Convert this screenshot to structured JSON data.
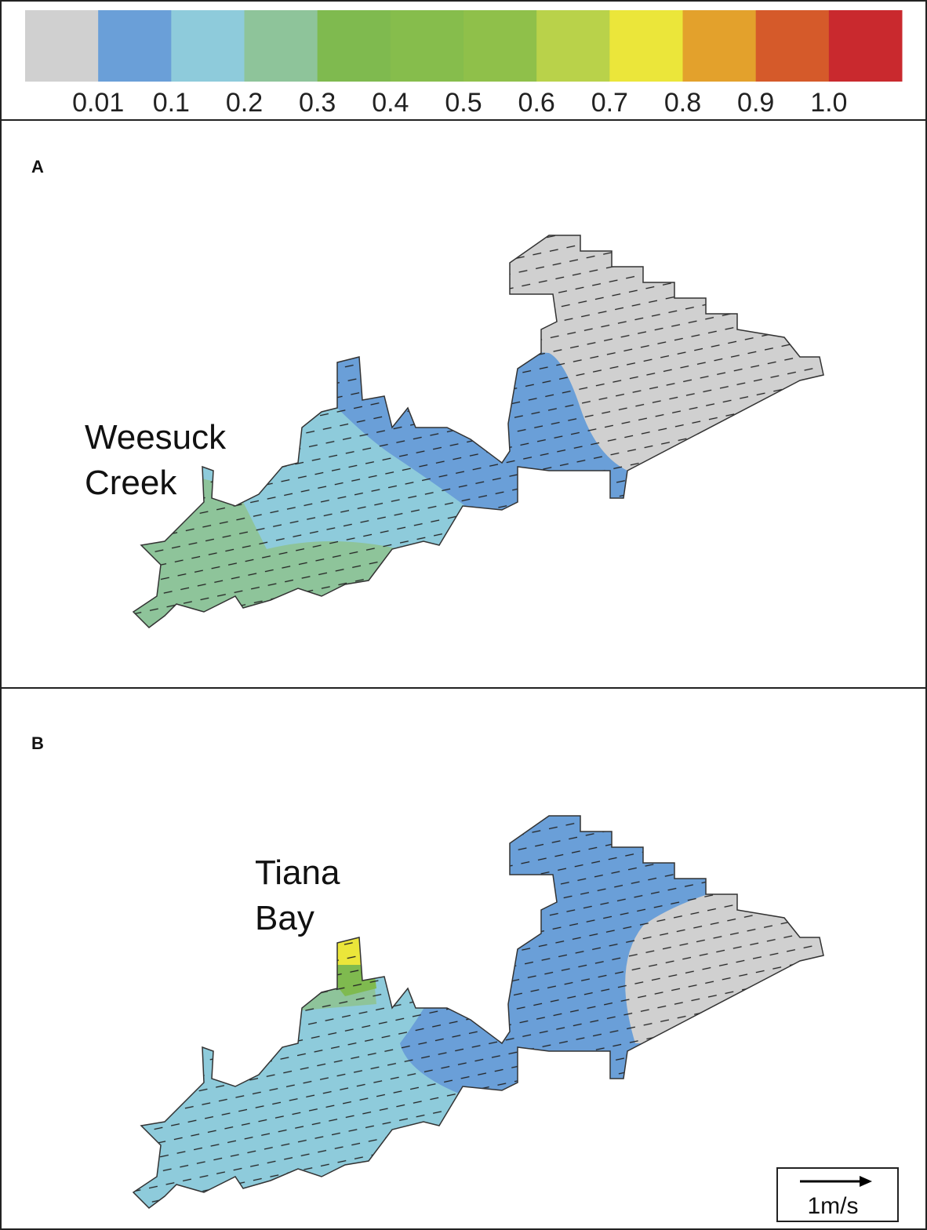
{
  "colorbar": {
    "colors": [
      "#d0d0d0",
      "#6a9fd8",
      "#8ecbdb",
      "#8ec49a",
      "#7fba4f",
      "#86bd4c",
      "#8fc04a",
      "#b9d24a",
      "#ebe63a",
      "#e3a12c",
      "#d55a2a",
      "#c9292e"
    ],
    "ticks": [
      0.01,
      0.1,
      0.2,
      0.3,
      0.4,
      0.5,
      0.6,
      0.7,
      0.8,
      0.9,
      {
        "value": 1,
        "label": "1.0"
      }
    ]
  },
  "panels": [
    {
      "label": "A",
      "place_label": [
        "Weesuck",
        "Creek"
      ]
    },
    {
      "label": "B",
      "place_label": [
        "Tiana",
        "Bay"
      ]
    }
  ],
  "scale": {
    "label": "1m/s"
  }
}
